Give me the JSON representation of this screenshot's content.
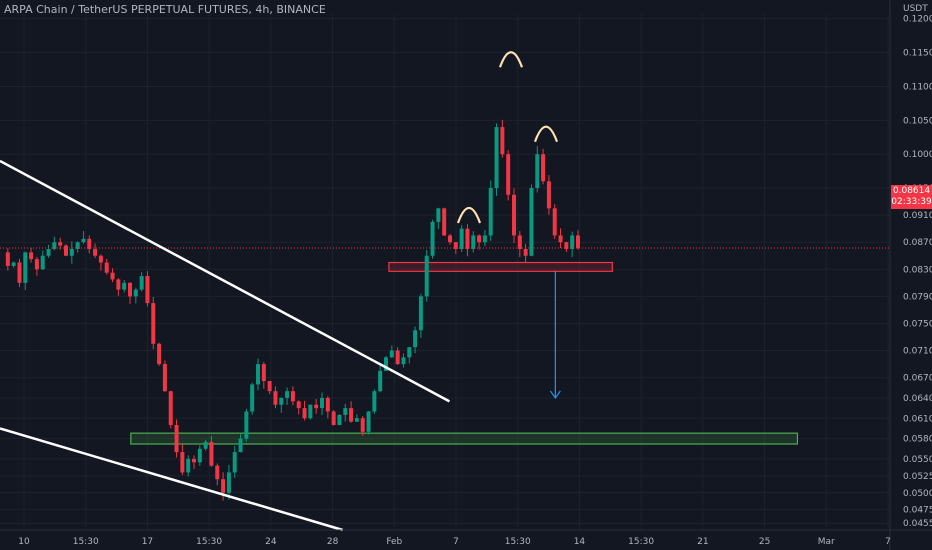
{
  "header": {
    "symbol_line": "ARPA Chain / TetherUS PERPETUAL FUTURES, 4h, BINANCE",
    "currency": "USDT"
  },
  "price_tag": {
    "price": "0.08614",
    "countdown": "02:33:39"
  },
  "colors": {
    "background": "#131722",
    "up_candle": "#089981",
    "down_candle": "#f23645",
    "axis_text": "#b2b5be",
    "trendline": "#ffffff",
    "support_zone": "#4caf50",
    "resistance_zone": "#f23645",
    "head_shoulders_arc": "#ffe0b2",
    "target_arrow": "#2196f3"
  },
  "chart_data": {
    "type": "candlestick",
    "y_axis": {
      "ylim": [
        0.0445,
        0.1207
      ],
      "ticks": [
        "0.12000",
        "0.11500",
        "0.11000",
        "0.10500",
        "0.10000",
        "0.09500",
        "0.09100",
        "0.08700",
        "0.08300",
        "0.07900",
        "0.07500",
        "0.07100",
        "0.06700",
        "0.06400",
        "0.06100",
        "0.05800",
        "0.05500",
        "0.05250",
        "0.05000",
        "0.04750",
        "0.04550"
      ]
    },
    "x_axis": {
      "ticks": [
        "10",
        "15:30",
        "17",
        "15:30",
        "24",
        "28",
        "Feb",
        "7",
        "15:30",
        "14",
        "15:30",
        "21",
        "25",
        "Mar",
        "7"
      ]
    },
    "last_price": 0.08614,
    "price_path": [
      0.0855,
      0.0835,
      0.084,
      0.081,
      0.0855,
      0.0845,
      0.083,
      0.085,
      0.086,
      0.087,
      0.0865,
      0.085,
      0.086,
      0.087,
      0.0875,
      0.086,
      0.085,
      0.084,
      0.0825,
      0.0815,
      0.08,
      0.081,
      0.079,
      0.08,
      0.082,
      0.078,
      0.072,
      0.069,
      0.065,
      0.06,
      0.056,
      0.053,
      0.055,
      0.0545,
      0.0565,
      0.0575,
      0.054,
      0.052,
      0.05,
      0.053,
      0.056,
      0.058,
      0.062,
      0.066,
      0.069,
      0.0665,
      0.065,
      0.063,
      0.064,
      0.065,
      0.0635,
      0.0625,
      0.061,
      0.063,
      0.0625,
      0.064,
      0.062,
      0.06,
      0.0615,
      0.0625,
      0.0605,
      0.061,
      0.059,
      0.062,
      0.065,
      0.068,
      0.07,
      0.071,
      0.069,
      0.07,
      0.0715,
      0.074,
      0.079,
      0.085,
      0.09,
      0.092,
      0.088,
      0.087,
      0.086,
      0.089,
      0.086,
      0.088,
      0.087,
      0.088,
      0.095,
      0.104,
      0.1,
      0.094,
      0.088,
      0.086,
      0.085,
      0.095,
      0.1,
      0.096,
      0.092,
      0.088,
      0.087,
      0.086,
      0.088,
      0.0861
    ],
    "annotations": {
      "descending_channel_upper": [
        [
          0.0,
          0.099
        ],
        [
          0.505,
          0.0635
        ]
      ],
      "descending_channel_lower": [
        [
          0.0,
          0.0595
        ],
        [
          0.385,
          0.0445
        ]
      ],
      "support_zone": {
        "x": [
          0.147,
          0.896
        ],
        "y": [
          0.0572,
          0.0588
        ]
      },
      "neckline_zone": {
        "x": [
          0.437,
          0.688
        ],
        "y": [
          0.0827,
          0.084
        ]
      },
      "shoulder_left_peak": 0.0925,
      "head_peak": 0.1155,
      "shoulder_right_peak": 0.1045,
      "target_arrow": {
        "x": 0.624,
        "from": 0.0828,
        "to": 0.064
      }
    }
  }
}
